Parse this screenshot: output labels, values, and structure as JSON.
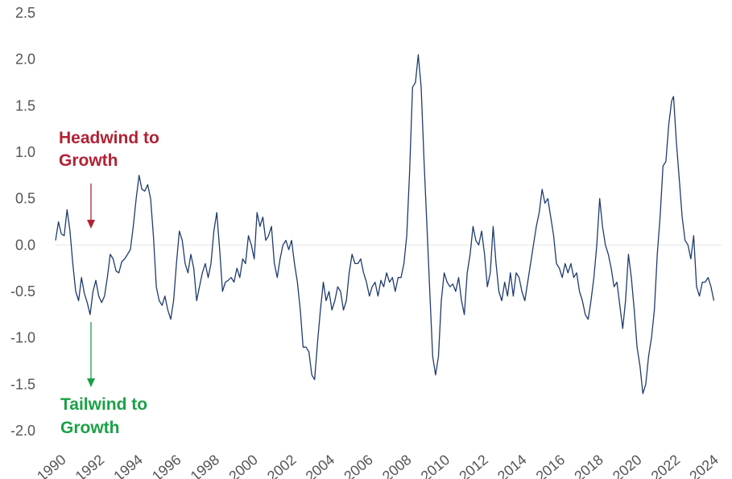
{
  "chart_data": {
    "type": "line",
    "title": "",
    "xlabel": "",
    "ylabel": "",
    "xlim": [
      1990,
      2024.7
    ],
    "ylim": [
      -2.0,
      2.5
    ],
    "yticks": [
      "2.5",
      "2.0",
      "1.5",
      "1.0",
      "0.5",
      "0.0",
      "-0.5",
      "-1.0",
      "-1.5",
      "-2.0"
    ],
    "ytick_values": [
      2.5,
      2.0,
      1.5,
      1.0,
      0.5,
      0.0,
      -0.5,
      -1.0,
      -1.5,
      -2.0
    ],
    "xticks": [
      "1990",
      "1992",
      "1994",
      "1996",
      "1998",
      "2000",
      "2002",
      "2004",
      "2006",
      "2008",
      "2010",
      "2012",
      "2014",
      "2016",
      "2018",
      "2020",
      "2022",
      "2024"
    ],
    "xtick_values": [
      1990,
      1992,
      1994,
      1996,
      1998,
      2000,
      2002,
      2004,
      2006,
      2008,
      2010,
      2012,
      2014,
      2016,
      2018,
      2020,
      2022,
      2024
    ],
    "grid": false,
    "zero_line": true,
    "series": [
      {
        "color": "#1f3b6e",
        "points": [
          [
            1990.0,
            0.05
          ],
          [
            1990.15,
            0.25
          ],
          [
            1990.3,
            0.12
          ],
          [
            1990.45,
            0.1
          ],
          [
            1990.6,
            0.38
          ],
          [
            1990.75,
            0.15
          ],
          [
            1990.9,
            -0.2
          ],
          [
            1991.05,
            -0.5
          ],
          [
            1991.2,
            -0.6
          ],
          [
            1991.35,
            -0.35
          ],
          [
            1991.5,
            -0.52
          ],
          [
            1991.65,
            -0.62
          ],
          [
            1991.8,
            -0.75
          ],
          [
            1991.95,
            -0.5
          ],
          [
            1992.1,
            -0.38
          ],
          [
            1992.25,
            -0.55
          ],
          [
            1992.4,
            -0.62
          ],
          [
            1992.55,
            -0.55
          ],
          [
            1992.7,
            -0.35
          ],
          [
            1992.85,
            -0.1
          ],
          [
            1993.0,
            -0.15
          ],
          [
            1993.15,
            -0.28
          ],
          [
            1993.3,
            -0.3
          ],
          [
            1993.45,
            -0.18
          ],
          [
            1993.6,
            -0.15
          ],
          [
            1993.75,
            -0.1
          ],
          [
            1993.9,
            -0.05
          ],
          [
            1994.05,
            0.2
          ],
          [
            1994.2,
            0.5
          ],
          [
            1994.35,
            0.75
          ],
          [
            1994.5,
            0.6
          ],
          [
            1994.65,
            0.58
          ],
          [
            1994.8,
            0.65
          ],
          [
            1994.95,
            0.5
          ],
          [
            1995.1,
            0.1
          ],
          [
            1995.25,
            -0.45
          ],
          [
            1995.4,
            -0.6
          ],
          [
            1995.55,
            -0.65
          ],
          [
            1995.7,
            -0.55
          ],
          [
            1995.85,
            -0.7
          ],
          [
            1996.0,
            -0.8
          ],
          [
            1996.15,
            -0.6
          ],
          [
            1996.3,
            -0.2
          ],
          [
            1996.45,
            0.15
          ],
          [
            1996.6,
            0.05
          ],
          [
            1996.75,
            -0.2
          ],
          [
            1996.9,
            -0.3
          ],
          [
            1997.05,
            -0.1
          ],
          [
            1997.2,
            -0.25
          ],
          [
            1997.35,
            -0.6
          ],
          [
            1997.5,
            -0.45
          ],
          [
            1997.65,
            -0.3
          ],
          [
            1997.8,
            -0.2
          ],
          [
            1997.95,
            -0.35
          ],
          [
            1998.1,
            -0.2
          ],
          [
            1998.25,
            0.15
          ],
          [
            1998.4,
            0.35
          ],
          [
            1998.55,
            -0.05
          ],
          [
            1998.7,
            -0.5
          ],
          [
            1998.85,
            -0.4
          ],
          [
            1999.0,
            -0.38
          ],
          [
            1999.15,
            -0.35
          ],
          [
            1999.3,
            -0.4
          ],
          [
            1999.45,
            -0.25
          ],
          [
            1999.6,
            -0.35
          ],
          [
            1999.75,
            -0.15
          ],
          [
            1999.9,
            -0.2
          ],
          [
            2000.05,
            0.1
          ],
          [
            2000.2,
            0.0
          ],
          [
            2000.35,
            -0.15
          ],
          [
            2000.5,
            0.35
          ],
          [
            2000.65,
            0.2
          ],
          [
            2000.8,
            0.3
          ],
          [
            2000.95,
            0.05
          ],
          [
            2001.1,
            0.1
          ],
          [
            2001.25,
            0.2
          ],
          [
            2001.4,
            -0.2
          ],
          [
            2001.55,
            -0.35
          ],
          [
            2001.7,
            -0.15
          ],
          [
            2001.85,
            0.0
          ],
          [
            2002.0,
            0.05
          ],
          [
            2002.15,
            -0.05
          ],
          [
            2002.3,
            0.05
          ],
          [
            2002.45,
            -0.2
          ],
          [
            2002.6,
            -0.4
          ],
          [
            2002.75,
            -0.7
          ],
          [
            2002.9,
            -1.1
          ],
          [
            2003.05,
            -1.1
          ],
          [
            2003.2,
            -1.15
          ],
          [
            2003.35,
            -1.4
          ],
          [
            2003.5,
            -1.45
          ],
          [
            2003.65,
            -1.05
          ],
          [
            2003.8,
            -0.7
          ],
          [
            2003.95,
            -0.4
          ],
          [
            2004.1,
            -0.6
          ],
          [
            2004.25,
            -0.5
          ],
          [
            2004.4,
            -0.7
          ],
          [
            2004.55,
            -0.6
          ],
          [
            2004.7,
            -0.45
          ],
          [
            2004.85,
            -0.5
          ],
          [
            2005.0,
            -0.7
          ],
          [
            2005.15,
            -0.6
          ],
          [
            2005.3,
            -0.3
          ],
          [
            2005.45,
            -0.1
          ],
          [
            2005.6,
            -0.2
          ],
          [
            2005.75,
            -0.2
          ],
          [
            2005.9,
            -0.15
          ],
          [
            2006.05,
            -0.3
          ],
          [
            2006.2,
            -0.4
          ],
          [
            2006.35,
            -0.55
          ],
          [
            2006.5,
            -0.45
          ],
          [
            2006.65,
            -0.4
          ],
          [
            2006.8,
            -0.55
          ],
          [
            2006.95,
            -0.38
          ],
          [
            2007.1,
            -0.45
          ],
          [
            2007.25,
            -0.3
          ],
          [
            2007.4,
            -0.4
          ],
          [
            2007.55,
            -0.35
          ],
          [
            2007.7,
            -0.5
          ],
          [
            2007.85,
            -0.35
          ],
          [
            2008.0,
            -0.35
          ],
          [
            2008.15,
            -0.2
          ],
          [
            2008.3,
            0.1
          ],
          [
            2008.45,
            0.8
          ],
          [
            2008.6,
            1.7
          ],
          [
            2008.75,
            1.75
          ],
          [
            2008.9,
            2.05
          ],
          [
            2009.05,
            1.7
          ],
          [
            2009.2,
            0.9
          ],
          [
            2009.35,
            0.2
          ],
          [
            2009.5,
            -0.5
          ],
          [
            2009.65,
            -1.2
          ],
          [
            2009.8,
            -1.4
          ],
          [
            2009.95,
            -1.2
          ],
          [
            2010.1,
            -0.6
          ],
          [
            2010.25,
            -0.3
          ],
          [
            2010.4,
            -0.4
          ],
          [
            2010.55,
            -0.45
          ],
          [
            2010.7,
            -0.42
          ],
          [
            2010.85,
            -0.5
          ],
          [
            2011.0,
            -0.35
          ],
          [
            2011.15,
            -0.6
          ],
          [
            2011.3,
            -0.75
          ],
          [
            2011.45,
            -0.3
          ],
          [
            2011.6,
            -0.1
          ],
          [
            2011.75,
            0.2
          ],
          [
            2011.9,
            0.05
          ],
          [
            2012.05,
            0.0
          ],
          [
            2012.2,
            0.15
          ],
          [
            2012.35,
            -0.1
          ],
          [
            2012.5,
            -0.45
          ],
          [
            2012.65,
            -0.3
          ],
          [
            2012.8,
            0.2
          ],
          [
            2012.95,
            -0.2
          ],
          [
            2013.1,
            -0.5
          ],
          [
            2013.25,
            -0.6
          ],
          [
            2013.4,
            -0.4
          ],
          [
            2013.55,
            -0.55
          ],
          [
            2013.7,
            -0.3
          ],
          [
            2013.85,
            -0.55
          ],
          [
            2014.0,
            -0.3
          ],
          [
            2014.15,
            -0.35
          ],
          [
            2014.3,
            -0.5
          ],
          [
            2014.45,
            -0.6
          ],
          [
            2014.6,
            -0.4
          ],
          [
            2014.75,
            -0.2
          ],
          [
            2014.9,
            0.0
          ],
          [
            2015.05,
            0.2
          ],
          [
            2015.2,
            0.35
          ],
          [
            2015.35,
            0.6
          ],
          [
            2015.5,
            0.45
          ],
          [
            2015.65,
            0.5
          ],
          [
            2015.8,
            0.3
          ],
          [
            2015.95,
            0.1
          ],
          [
            2016.1,
            -0.2
          ],
          [
            2016.25,
            -0.25
          ],
          [
            2016.4,
            -0.35
          ],
          [
            2016.55,
            -0.2
          ],
          [
            2016.7,
            -0.3
          ],
          [
            2016.85,
            -0.2
          ],
          [
            2017.0,
            -0.35
          ],
          [
            2017.15,
            -0.3
          ],
          [
            2017.3,
            -0.5
          ],
          [
            2017.45,
            -0.6
          ],
          [
            2017.6,
            -0.75
          ],
          [
            2017.75,
            -0.8
          ],
          [
            2017.9,
            -0.6
          ],
          [
            2018.05,
            -0.35
          ],
          [
            2018.2,
            0.0
          ],
          [
            2018.35,
            0.5
          ],
          [
            2018.5,
            0.2
          ],
          [
            2018.65,
            0.0
          ],
          [
            2018.8,
            -0.1
          ],
          [
            2018.95,
            -0.25
          ],
          [
            2019.1,
            -0.45
          ],
          [
            2019.25,
            -0.4
          ],
          [
            2019.4,
            -0.65
          ],
          [
            2019.55,
            -0.9
          ],
          [
            2019.7,
            -0.6
          ],
          [
            2019.85,
            -0.1
          ],
          [
            2020.0,
            -0.35
          ],
          [
            2020.15,
            -0.7
          ],
          [
            2020.3,
            -1.1
          ],
          [
            2020.45,
            -1.3
          ],
          [
            2020.6,
            -1.6
          ],
          [
            2020.75,
            -1.5
          ],
          [
            2020.9,
            -1.2
          ],
          [
            2021.05,
            -1.0
          ],
          [
            2021.2,
            -0.7
          ],
          [
            2021.35,
            -0.1
          ],
          [
            2021.5,
            0.3
          ],
          [
            2021.65,
            0.85
          ],
          [
            2021.8,
            0.9
          ],
          [
            2021.95,
            1.3
          ],
          [
            2022.1,
            1.55
          ],
          [
            2022.2,
            1.6
          ],
          [
            2022.35,
            1.1
          ],
          [
            2022.5,
            0.7
          ],
          [
            2022.65,
            0.3
          ],
          [
            2022.8,
            0.05
          ],
          [
            2022.95,
            0.0
          ],
          [
            2023.1,
            -0.15
          ],
          [
            2023.25,
            0.1
          ],
          [
            2023.4,
            -0.45
          ],
          [
            2023.55,
            -0.55
          ],
          [
            2023.7,
            -0.4
          ],
          [
            2023.85,
            -0.4
          ],
          [
            2024.0,
            -0.35
          ],
          [
            2024.15,
            -0.45
          ],
          [
            2024.3,
            -0.6
          ]
        ]
      }
    ],
    "annotations": [
      {
        "text_lines": [
          "Headwind to",
          "Growth"
        ],
        "color": "#b22234",
        "arrow": "down"
      },
      {
        "text_lines": [
          "Tailwind to",
          "Growth"
        ],
        "color": "#1aa146",
        "arrow": "down"
      }
    ]
  }
}
